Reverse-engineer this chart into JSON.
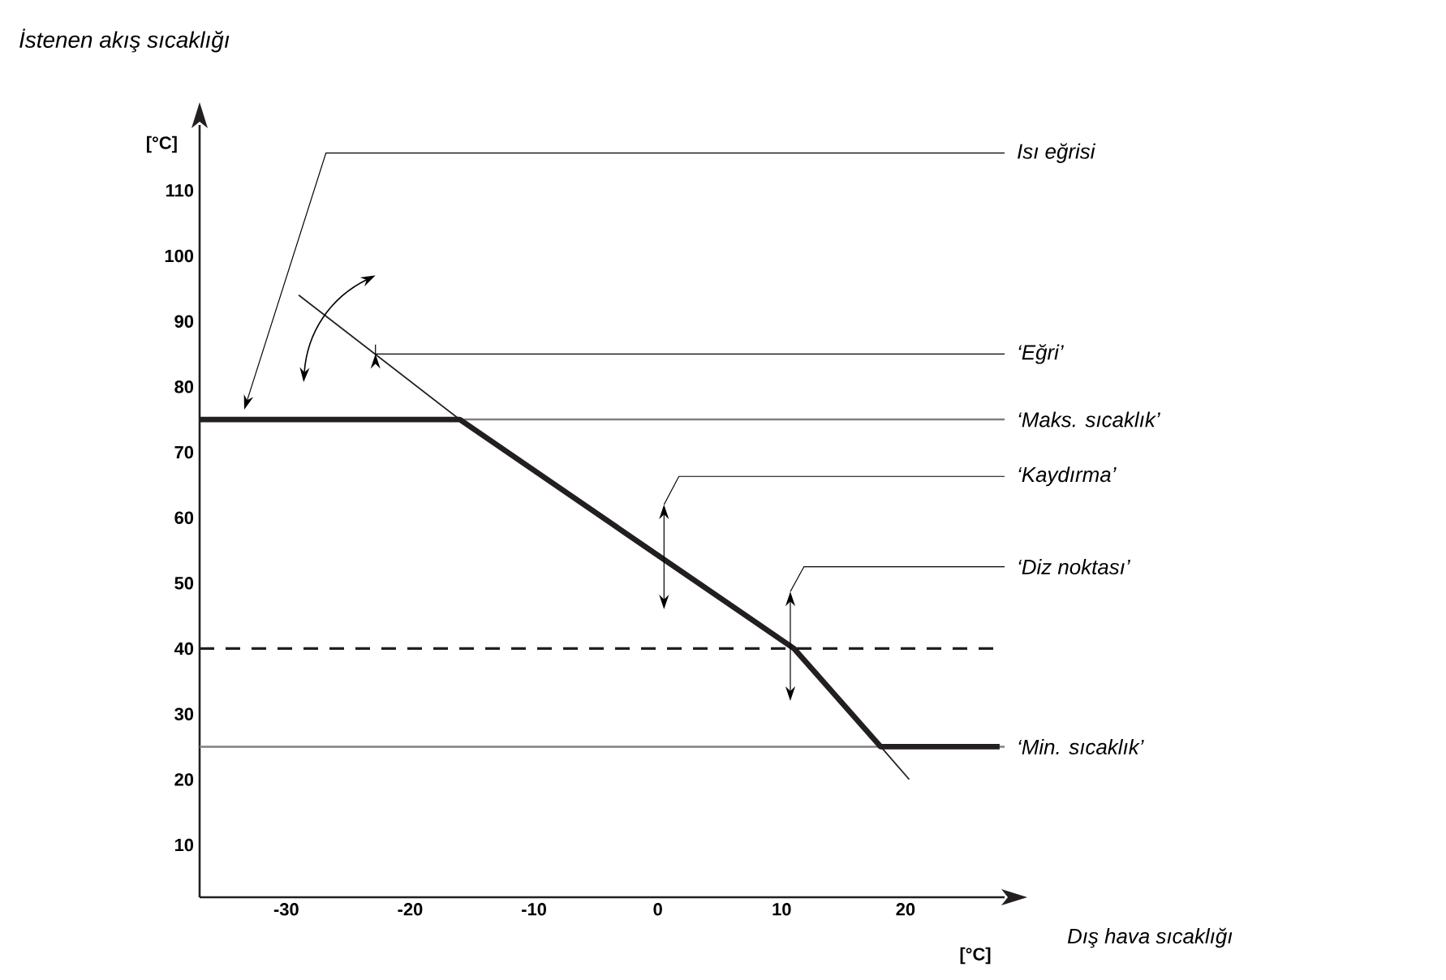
{
  "chart_data": {
    "type": "line",
    "title": "İstenen akış sıcaklığı",
    "xlabel": "Dış hava sıcaklığı",
    "ylabel": "[°C]",
    "xlim": [
      -37,
      28
    ],
    "ylim": [
      2,
      120
    ],
    "xticks": [
      -30,
      -20,
      -10,
      0,
      10,
      20
    ],
    "yticks": [
      10,
      20,
      30,
      40,
      50,
      60,
      70,
      80,
      90,
      100,
      110
    ],
    "series": [
      {
        "color": "#231f20",
        "x": [
          -37,
          -16,
          11,
          18,
          27.6
        ],
        "values": [
          75,
          75,
          40,
          25,
          25
        ]
      },
      {
        "color": "#231f20",
        "x": [
          -29,
          -16
        ],
        "values": [
          94,
          75
        ]
      },
      {
        "color": "#231f20",
        "x": [
          18,
          20.3
        ],
        "values": [
          25,
          20
        ]
      }
    ],
    "ref_lines": [
      {
        "axis": "y",
        "value": 75,
        "label": "‘Maks. sıcaklık’",
        "color": "#808080"
      },
      {
        "axis": "y",
        "value": 40,
        "color": "#231f20",
        "line_style": "dashed"
      },
      {
        "axis": "y",
        "value": 25,
        "label": "‘Min. sıcaklık’",
        "color": "#808080"
      }
    ],
    "annotations": [
      "Isı eğrisi",
      "‘Eğri’",
      "‘Kaydırma’",
      "‘Diz noktası’",
      "[°C]"
    ]
  }
}
